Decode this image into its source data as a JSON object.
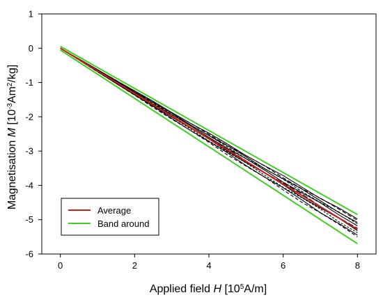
{
  "chart_data": {
    "type": "line",
    "xlabel": "Applied field H [10^5A/m]",
    "ylabel": "Magnetisation M [10^-3Am^2/kg]",
    "xlim": [
      -0.5,
      8.5
    ],
    "ylim": [
      -6,
      1
    ],
    "xticks": [
      0,
      2,
      4,
      6,
      8
    ],
    "yticks": [
      1,
      0,
      -1,
      -2,
      -3,
      -4,
      -5,
      -6
    ],
    "grid": false,
    "legend_position": "bottom-left",
    "series": [
      {
        "name": "Average",
        "color": "#c81e1e",
        "x": [
          0,
          8
        ],
        "y": [
          0,
          -5.28
        ]
      },
      {
        "name": "Band around",
        "color": "#3ecf1f",
        "x": [
          0,
          8
        ],
        "y": [
          0.05,
          -4.85
        ],
        "band": "upper"
      },
      {
        "name": "Band around",
        "color": "#3ecf1f",
        "x": [
          0,
          8
        ],
        "y": [
          -0.05,
          -5.7
        ],
        "band": "lower"
      }
    ],
    "sample_lines": {
      "color": "#000000",
      "end_values_at_x8": [
        -4.98,
        -5.02,
        -5.08,
        -5.12,
        -5.18,
        -5.25,
        -5.32,
        -5.38,
        -5.45,
        -5.5
      ]
    }
  }
}
